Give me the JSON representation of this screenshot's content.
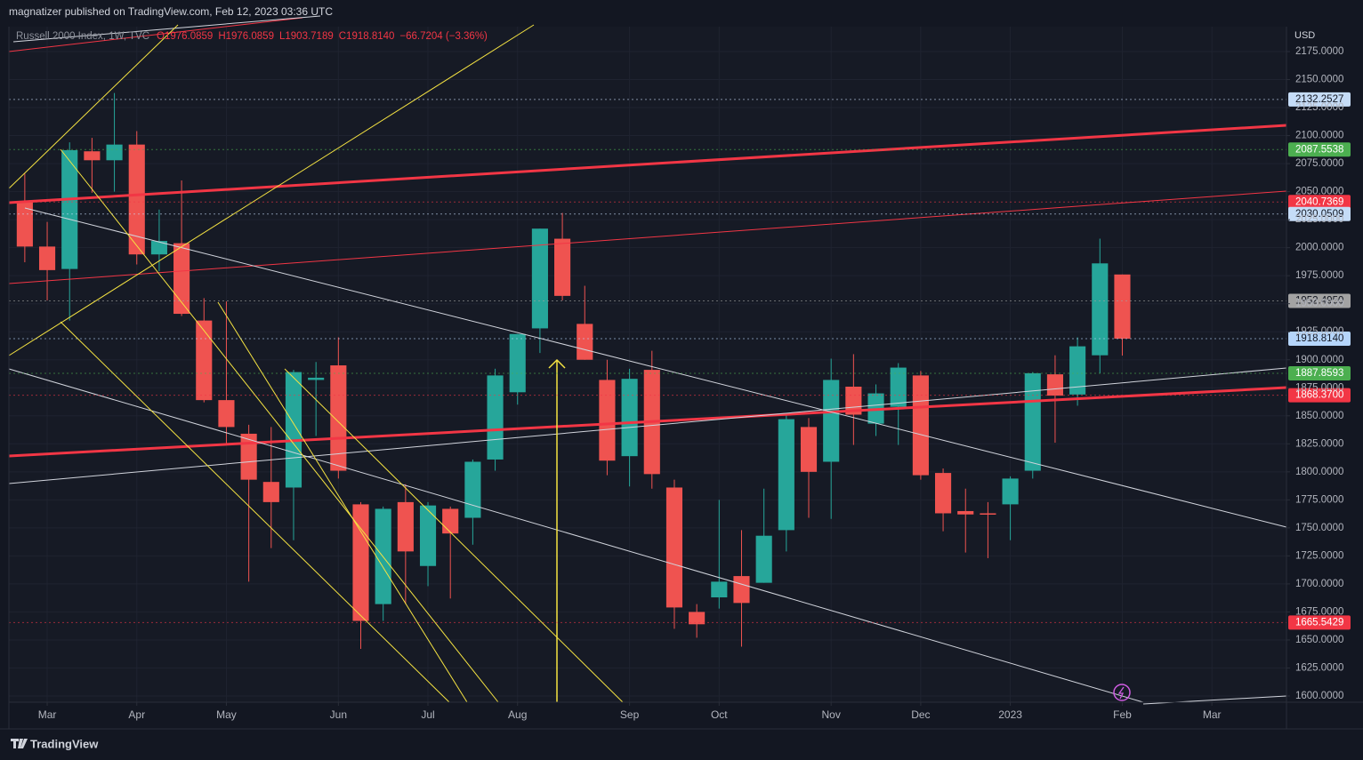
{
  "chart_data": {
    "type": "candlestick",
    "title": "magnatizer published on TradingView.com, Feb 12, 2023 03:36 UTC",
    "symbol": "Russell 2000 Index, 1W, TVC",
    "legend_values": [
      "O1976.0859",
      "H1976.0859",
      "L1903.7189",
      "C1918.8140",
      "−66.7204 (−3.36%)"
    ],
    "currency": "USD",
    "brand": "TradingView",
    "up_color": "#26a69a",
    "down_color": "#ef5350",
    "open": [
      2041,
      2001,
      1981,
      2086,
      2078,
      2092,
      1994,
      2004,
      1935,
      1864,
      1834,
      1791,
      1786,
      1882,
      1895,
      1771,
      1682,
      1773,
      1716,
      1767,
      1759,
      1811,
      1871,
      1928,
      2008,
      1932,
      1882,
      1814,
      1891,
      1786,
      1675,
      1688,
      1707,
      1701,
      1748,
      1840,
      1809,
      1876,
      1843,
      1858,
      1886,
      1799,
      1765,
      1763,
      1771,
      1801,
      1887,
      1869,
      1904,
      1976.0859
    ],
    "high": [
      2066,
      2023,
      2094,
      2098,
      2138,
      2104,
      2034,
      2060,
      1955,
      1952,
      1842,
      1840,
      1891,
      1898,
      1920,
      1773,
      1769,
      1789,
      1773,
      1769,
      1811,
      1892,
      1923,
      2017,
      2031,
      1966,
      1900,
      1892,
      1908,
      1793,
      1682,
      1775,
      1748,
      1785,
      1851,
      1848,
      1901,
      1905,
      1878,
      1897,
      1890,
      1803,
      1785,
      1773,
      1796,
      1889,
      1904,
      1920,
      2008,
      1976.0859
    ],
    "low": [
      1987,
      1953,
      1935,
      2049,
      2050,
      1985,
      1979,
      1939,
      1862,
      1824,
      1702,
      1732,
      1739,
      1832,
      1794,
      1642,
      1667,
      1682,
      1698,
      1687,
      1735,
      1801,
      1860,
      1906,
      1953,
      1900,
      1797,
      1787,
      1785,
      1660,
      1652,
      1678,
      1644,
      1701,
      1729,
      1759,
      1758,
      1824,
      1832,
      1824,
      1793,
      1747,
      1728,
      1723,
      1739,
      1794,
      1826,
      1859,
      1888,
      1903.7189
    ],
    "close": [
      2001,
      1980,
      2087,
      2078,
      2092,
      1994,
      2006,
      1941,
      1864,
      1840,
      1793,
      1773,
      1889,
      1884,
      1801,
      1667,
      1767,
      1729,
      1770,
      1745,
      1809,
      1886,
      1923,
      2017,
      1957,
      1900,
      1810,
      1883,
      1798,
      1679,
      1664,
      1702,
      1683,
      1743,
      1847,
      1800,
      1882,
      1851,
      1870,
      1893,
      1797,
      1763,
      1762,
      1762,
      1794,
      1888,
      1868,
      1912,
      1986,
      1918.814
    ],
    "xlim": [
      -0.71,
      56.33
    ],
    "xticks": [
      {
        "value": 1,
        "label": "Mar"
      },
      {
        "value": 5,
        "label": "Apr"
      },
      {
        "value": 9,
        "label": "May"
      },
      {
        "value": 14,
        "label": "Jun"
      },
      {
        "value": 18,
        "label": "Jul"
      },
      {
        "value": 22,
        "label": "Aug"
      },
      {
        "value": 27,
        "label": "Sep"
      },
      {
        "value": 31,
        "label": "Oct"
      },
      {
        "value": 36,
        "label": "Nov"
      },
      {
        "value": 40,
        "label": "Dec"
      },
      {
        "value": 44,
        "label": "2023"
      },
      {
        "value": 49,
        "label": "Feb"
      },
      {
        "value": 53,
        "label": "Mar"
      }
    ],
    "ylim": [
      1594.45,
      2197.2
    ],
    "yticks": [
      {
        "value": 1600,
        "label": "1600.0000"
      },
      {
        "value": 1625,
        "label": "1625.0000"
      },
      {
        "value": 1650,
        "label": "1650.0000"
      },
      {
        "value": 1675,
        "label": "1675.0000"
      },
      {
        "value": 1700,
        "label": "1700.0000"
      },
      {
        "value": 1725,
        "label": "1725.0000"
      },
      {
        "value": 1750,
        "label": "1750.0000"
      },
      {
        "value": 1775,
        "label": "1775.0000"
      },
      {
        "value": 1800,
        "label": "1800.0000"
      },
      {
        "value": 1825,
        "label": "1825.0000"
      },
      {
        "value": 1850,
        "label": "1850.0000"
      },
      {
        "value": 1875,
        "label": "1875.0000"
      },
      {
        "value": 1900,
        "label": "1900.0000"
      },
      {
        "value": 1925,
        "label": "1925.0000"
      },
      {
        "value": 1950,
        "label": "1950.0000"
      },
      {
        "value": 1975,
        "label": "1975.0000"
      },
      {
        "value": 2000,
        "label": "2000.0000"
      },
      {
        "value": 2025,
        "label": "2025.0000"
      },
      {
        "value": 2050,
        "label": "2050.0000"
      },
      {
        "value": 2075,
        "label": "2075.0000"
      },
      {
        "value": 2100,
        "label": "2100.0000"
      },
      {
        "value": 2125,
        "label": "2125.0000"
      },
      {
        "value": 2150,
        "label": "2150.0000"
      },
      {
        "value": 2175,
        "label": "2175.0000"
      }
    ],
    "grid": true,
    "price_markers": [
      {
        "value": 2132.2527,
        "label": "2132.2527",
        "color": "#c5dcf7"
      },
      {
        "value": 2087.5538,
        "label": "2087.5538",
        "color": "#4caf50"
      },
      {
        "value": 2040.7369,
        "label": "2040.7369",
        "color": "#f23645"
      },
      {
        "value": 2030.0509,
        "label": "2030.0509",
        "color": "#c5dcf7"
      },
      {
        "value": 1952.495,
        "label": "1952.4950",
        "color": "#a3a3a3"
      },
      {
        "value": 1918.814,
        "label": "1918.8140",
        "color": "#b5d5fb"
      },
      {
        "value": 1887.8593,
        "label": "1887.8593",
        "color": "#4caf50"
      },
      {
        "value": 1868.37,
        "label": "1868.3700",
        "color": "#f23645"
      },
      {
        "value": 1665.5429,
        "label": "1665.5429",
        "color": "#f23645"
      }
    ]
  }
}
